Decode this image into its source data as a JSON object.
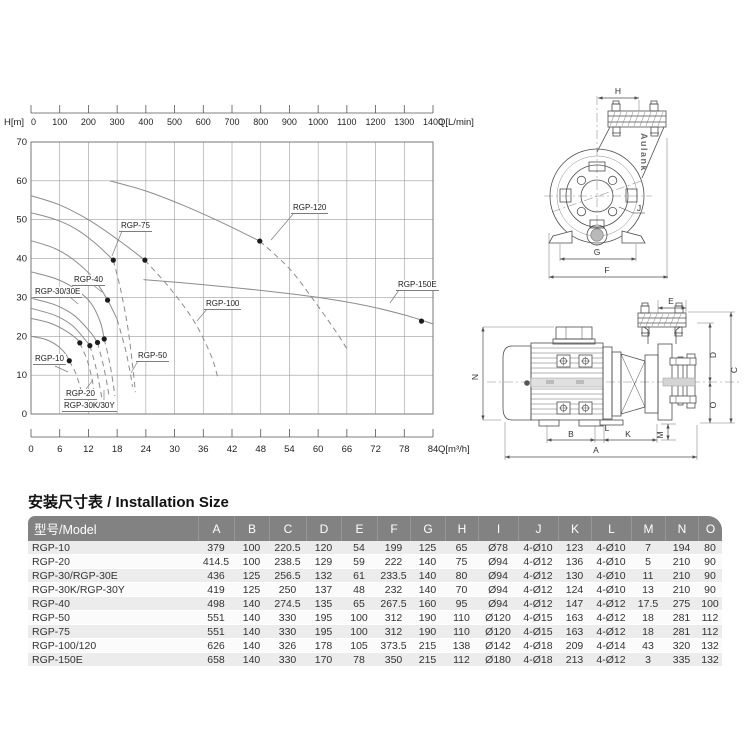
{
  "brand": "Aulank",
  "chart_data": {
    "type": "line",
    "title": "",
    "grid": true,
    "y_axis": {
      "label": "H[m]",
      "ticks": [
        70,
        60,
        50,
        40,
        30,
        20,
        10,
        0
      ],
      "range": [
        0,
        70
      ]
    },
    "top_axis": {
      "label": "Q[L/min]",
      "ticks": [
        0,
        100,
        200,
        300,
        400,
        500,
        600,
        700,
        800,
        900,
        1000,
        1100,
        1200,
        1300,
        1400
      ],
      "range": [
        0,
        1400
      ]
    },
    "bottom_axis": {
      "label": "Q[m³/h]",
      "ticks": [
        0,
        6,
        12,
        18,
        24,
        30,
        36,
        42,
        48,
        54,
        60,
        66,
        72,
        78,
        84
      ],
      "range": [
        0,
        84
      ]
    },
    "series": [
      {
        "name": "RGP-10",
        "solid": [
          [
            0,
            20
          ],
          [
            3,
            19.2
          ],
          [
            5.5,
            17.6
          ],
          [
            7.2,
            15.5
          ],
          [
            8,
            13.7
          ]
        ],
        "dashed": [
          [
            8,
            13.7
          ],
          [
            9.3,
            10.6
          ],
          [
            10.2,
            7.2
          ],
          [
            10.6,
            5
          ]
        ],
        "dot": [
          8,
          13.7
        ]
      },
      {
        "name": "RGP-20",
        "solid": [
          [
            0,
            24.6
          ],
          [
            4,
            23.4
          ],
          [
            7,
            21.6
          ],
          [
            9.5,
            19.4
          ],
          [
            10.2,
            18.3
          ]
        ],
        "dashed": [
          [
            10.2,
            18.3
          ],
          [
            11.8,
            13.6
          ],
          [
            12.8,
            8.6
          ],
          [
            13.2,
            5.6
          ]
        ],
        "dot": [
          10.2,
          18.3
        ]
      },
      {
        "name": "RGP-30K/30Y",
        "solid": [
          [
            0,
            27.2
          ],
          [
            5,
            25.4
          ],
          [
            8.5,
            22.9
          ],
          [
            11,
            19.6
          ],
          [
            12.3,
            17.6
          ]
        ],
        "dashed": [
          [
            12.3,
            17.6
          ],
          [
            13.5,
            12.3
          ],
          [
            14.4,
            6.8
          ],
          [
            14.8,
            4.2
          ]
        ],
        "dot": [
          12.3,
          17.6
        ]
      },
      {
        "name": "RGP-30/30E",
        "solid": [
          [
            0,
            29.8
          ],
          [
            5,
            28.1
          ],
          [
            9,
            25.4
          ],
          [
            12.3,
            21.2
          ],
          [
            13.9,
            18.4
          ]
        ],
        "dashed": [
          [
            13.9,
            18.4
          ],
          [
            15.1,
            12.6
          ],
          [
            16,
            7
          ],
          [
            16.3,
            4.4
          ]
        ],
        "dot": [
          13.9,
          18.4
        ]
      },
      {
        "name": "RGP-40",
        "solid": [
          [
            0,
            36.6
          ],
          [
            5,
            34.9
          ],
          [
            9,
            32.4
          ],
          [
            12.5,
            28.6
          ],
          [
            14.5,
            23.6
          ],
          [
            15.3,
            19.3
          ]
        ],
        "dashed": [
          [
            15.3,
            19.3
          ],
          [
            16.4,
            13.4
          ],
          [
            17.2,
            7.6
          ],
          [
            17.5,
            4.6
          ]
        ],
        "dot": [
          15.3,
          19.3
        ]
      },
      {
        "name": "RGP-50",
        "solid": [
          [
            0,
            44.6
          ],
          [
            5,
            42.6
          ],
          [
            9,
            39.6
          ],
          [
            13,
            35
          ],
          [
            16,
            29.3
          ],
          [
            18,
            24.4
          ]
        ],
        "dashed": [
          [
            18,
            24.4
          ],
          [
            19.7,
            16.8
          ],
          [
            20.8,
            10.2
          ],
          [
            21.2,
            7
          ]
        ],
        "dot": [
          16,
          29.3
        ]
      },
      {
        "name": "RGP-75",
        "solid": [
          [
            0,
            51.8
          ],
          [
            5,
            50.1
          ],
          [
            9,
            47.9
          ],
          [
            13,
            44.4
          ],
          [
            17.2,
            39.6
          ]
        ],
        "dashed": [
          [
            17.2,
            39.6
          ],
          [
            18.8,
            31.6
          ],
          [
            20.3,
            21.6
          ],
          [
            21.4,
            10.6
          ],
          [
            21.8,
            5.6
          ]
        ],
        "dot": [
          17.2,
          39.6
        ]
      },
      {
        "name": "RGP-100",
        "solid": [
          [
            0,
            56.2
          ],
          [
            6,
            53.8
          ],
          [
            12,
            50
          ],
          [
            18,
            45
          ],
          [
            23.8,
            39.6
          ]
        ],
        "dashed": [
          [
            23.8,
            39.6
          ],
          [
            29,
            32.4
          ],
          [
            34,
            24
          ],
          [
            37.5,
            15.4
          ],
          [
            39,
            9.6
          ]
        ],
        "dot": [
          23.8,
          39.6
        ]
      },
      {
        "name": "RGP-120",
        "solid": [
          [
            16.5,
            60
          ],
          [
            24,
            57.4
          ],
          [
            32,
            53.6
          ],
          [
            40,
            49.2
          ],
          [
            47.8,
            44.5
          ]
        ],
        "dashed": [
          [
            47.8,
            44.5
          ],
          [
            54,
            37.4
          ],
          [
            59,
            29.4
          ],
          [
            63.5,
            21.6
          ],
          [
            66,
            16.8
          ]
        ],
        "dot": [
          47.8,
          44.5
        ]
      },
      {
        "name": "RGP-150E",
        "solid": [
          [
            23.5,
            34.6
          ],
          [
            35,
            33.4
          ],
          [
            48,
            31.8
          ],
          [
            60,
            30
          ],
          [
            70,
            27.9
          ],
          [
            78,
            25.5
          ],
          [
            84,
            23.2
          ]
        ],
        "dashed": [],
        "dot": [
          81.6,
          23.9
        ]
      }
    ]
  },
  "drawings": {
    "front": {
      "dim_labels": [
        "H",
        "G",
        "F"
      ],
      "callout": "J"
    },
    "side": {
      "dim_labels": [
        "E",
        "N",
        "D",
        "C",
        "O",
        "B",
        "L",
        "K",
        "M",
        "A"
      ]
    }
  },
  "table": {
    "title": "安装尺寸表 / Installation Size",
    "columns": [
      "型号/Model",
      "A",
      "B",
      "C",
      "D",
      "E",
      "F",
      "G",
      "H",
      "I",
      "J",
      "K",
      "L",
      "M",
      "N",
      "O"
    ],
    "rows": [
      {
        "model": "RGP-10",
        "values": [
          "379",
          "100",
          "220.5",
          "120",
          "54",
          "199",
          "125",
          "65",
          "Ø78",
          "4-Ø10",
          "123",
          "4-Ø10",
          "7",
          "194",
          "80"
        ]
      },
      {
        "model": "RGP-20",
        "values": [
          "414.5",
          "100",
          "238.5",
          "129",
          "59",
          "222",
          "140",
          "75",
          "Ø94",
          "4-Ø12",
          "136",
          "4-Ø10",
          "5",
          "210",
          "90"
        ]
      },
      {
        "model": "RGP-30/RGP-30E",
        "values": [
          "436",
          "125",
          "256.5",
          "132",
          "61",
          "233.5",
          "140",
          "80",
          "Ø94",
          "4-Ø12",
          "130",
          "4-Ø10",
          "11",
          "210",
          "90"
        ]
      },
      {
        "model": "RGP-30K/RGP-30Y",
        "values": [
          "419",
          "125",
          "250",
          "137",
          "48",
          "232",
          "140",
          "70",
          "Ø94",
          "4-Ø12",
          "124",
          "4-Ø10",
          "13",
          "210",
          "90"
        ]
      },
      {
        "model": "RGP-40",
        "values": [
          "498",
          "140",
          "274.5",
          "135",
          "65",
          "267.5",
          "160",
          "95",
          "Ø94",
          "4-Ø12",
          "147",
          "4-Ø12",
          "17.5",
          "275",
          "100"
        ]
      },
      {
        "model": "RGP-50",
        "values": [
          "551",
          "140",
          "330",
          "195",
          "100",
          "312",
          "190",
          "110",
          "Ø120",
          "4-Ø15",
          "163",
          "4-Ø12",
          "18",
          "281",
          "112"
        ]
      },
      {
        "model": "RGP-75",
        "values": [
          "551",
          "140",
          "330",
          "195",
          "100",
          "312",
          "190",
          "110",
          "Ø120",
          "4-Ø15",
          "163",
          "4-Ø12",
          "18",
          "281",
          "112"
        ]
      },
      {
        "model": "RGP-100/120",
        "values": [
          "626",
          "140",
          "326",
          "178",
          "105",
          "373.5",
          "215",
          "138",
          "Ø142",
          "4-Ø18",
          "209",
          "4-Ø14",
          "43",
          "320",
          "132"
        ]
      },
      {
        "model": "RGP-150E",
        "values": [
          "658",
          "140",
          "330",
          "170",
          "78",
          "350",
          "215",
          "112",
          "Ø180",
          "4-Ø18",
          "213",
          "4-Ø12",
          "3",
          "335",
          "132"
        ]
      }
    ]
  }
}
